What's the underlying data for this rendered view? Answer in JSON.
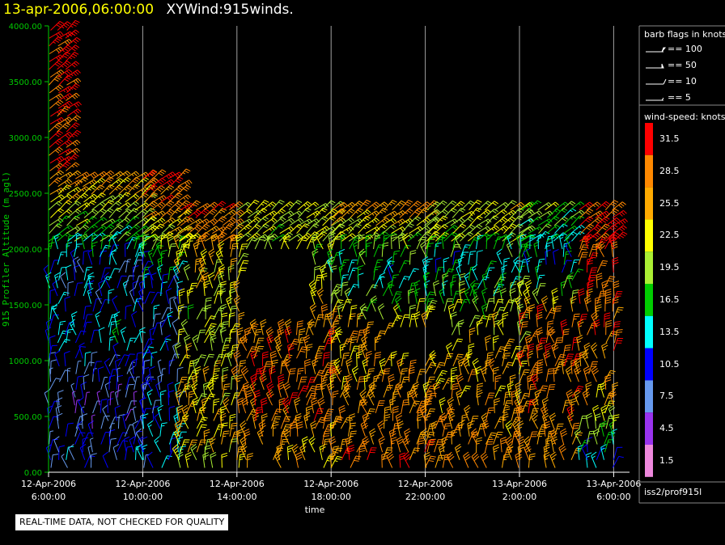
{
  "header": {
    "date": "13-apr-2006,06:00:00",
    "name": "XYWind:915winds."
  },
  "notice": "REAL-TIME DATA, NOT CHECKED FOR QUALITY",
  "source": "iss2/prof915l",
  "colors": {
    "axis_y": "#00cc00",
    "axis_x": "#ffffff",
    "grid": "#a0a0a0",
    "background": "#000000"
  },
  "flags_legend": {
    "title": "barb flags in knots",
    "items": [
      {
        "label": "== 100",
        "kind": "100"
      },
      {
        "label": "== 50",
        "kind": "50"
      },
      {
        "label": "== 10",
        "kind": "10"
      },
      {
        "label": "== 5",
        "kind": "5"
      }
    ]
  },
  "speed_legend": {
    "title": "wind-speed: knots",
    "items": [
      {
        "label": "31.5",
        "color": "#ff0000"
      },
      {
        "label": "28.5",
        "color": "#ff8800"
      },
      {
        "label": "25.5",
        "color": "#ffaa00"
      },
      {
        "label": "22.5",
        "color": "#ffff00"
      },
      {
        "label": "19.5",
        "color": "#aaee33"
      },
      {
        "label": "16.5",
        "color": "#00cc00"
      },
      {
        "label": "13.5",
        "color": "#00ffff"
      },
      {
        "label": "10.5",
        "color": "#0000ff"
      },
      {
        "label": "7.5",
        "color": "#6699ee"
      },
      {
        "label": "4.5",
        "color": "#9933ee"
      },
      {
        "label": "1.5",
        "color": "#ee88dd"
      }
    ]
  },
  "chart_data": {
    "type": "scatter",
    "subtype": "wind-barb time-height",
    "ylabel": "915 Profiler Altitude (m agl)",
    "xlabel": "time",
    "ylim": [
      0,
      4000
    ],
    "xlim_hours": [
      6,
      30.1
    ],
    "yticks": [
      "0.00",
      "500.00",
      "1000.00",
      "1500.00",
      "2000.00",
      "2500.00",
      "3000.00",
      "3500.00",
      "4000.00"
    ],
    "xticks": [
      {
        "hour": 6,
        "line1": "12-Apr-2006",
        "line2": "6:00:00"
      },
      {
        "hour": 10,
        "line1": "12-Apr-2006",
        "line2": "10:00:00"
      },
      {
        "hour": 14,
        "line1": "12-Apr-2006",
        "line2": "14:00:00"
      },
      {
        "hour": 18,
        "line1": "12-Apr-2006",
        "line2": "18:00:00"
      },
      {
        "hour": 22,
        "line1": "12-Apr-2006",
        "line2": "22:00:00"
      },
      {
        "hour": 26,
        "line1": "13-Apr-2006",
        "line2": "2:00:00"
      },
      {
        "hour": 30,
        "line1": "13-Apr-2006",
        "line2": "6:00:00"
      }
    ],
    "grid": "vertical lines at x ticks",
    "legend": "right",
    "time_step_hours": 0.36,
    "altitude_step_m": 70,
    "speed_bins_knots": [
      1.5,
      4.5,
      7.5,
      10.5,
      13.5,
      16.5,
      19.5,
      22.5,
      25.5,
      28.5,
      31.5
    ],
    "profiles": [
      {
        "from_hour": 6.0,
        "to_hour": 10.0,
        "top_m": 4000,
        "speed_knots_by_altitude": [
          [
            100,
            10
          ],
          [
            600,
            7
          ],
          [
            1200,
            13
          ],
          [
            1800,
            10
          ],
          [
            2000,
            16
          ],
          [
            2300,
            20
          ],
          [
            2500,
            24
          ],
          [
            2800,
            31
          ]
        ]
      },
      {
        "from_hour": 10.0,
        "to_hour": 11.5,
        "top_m": 3500,
        "speed_knots_by_altitude": [
          [
            100,
            13
          ],
          [
            800,
            10
          ],
          [
            1600,
            10
          ],
          [
            2000,
            20
          ],
          [
            2400,
            28
          ],
          [
            2800,
            32
          ]
        ]
      },
      {
        "from_hour": 11.5,
        "to_hour": 14.0,
        "top_m": 2650,
        "speed_knots_by_altitude": [
          [
            100,
            22
          ],
          [
            800,
            23
          ],
          [
            1400,
            20
          ],
          [
            2000,
            25
          ],
          [
            2400,
            31
          ]
        ]
      },
      {
        "from_hour": 14.0,
        "to_hour": 18.0,
        "top_m": 2350,
        "speed_knots_by_altitude": [
          [
            100,
            25
          ],
          [
            600,
            29
          ],
          [
            1200,
            28
          ],
          [
            1800,
            20
          ],
          [
            2200,
            21
          ]
        ]
      },
      {
        "from_hour": 18.0,
        "to_hour": 22.0,
        "top_m": 2450,
        "speed_knots_by_altitude": [
          [
            100,
            28
          ],
          [
            600,
            27
          ],
          [
            1200,
            25
          ],
          [
            1700,
            14
          ],
          [
            2100,
            20
          ],
          [
            2400,
            29
          ]
        ]
      },
      {
        "from_hour": 22.0,
        "to_hour": 26.0,
        "top_m": 2350,
        "speed_knots_by_altitude": [
          [
            100,
            27
          ],
          [
            700,
            26
          ],
          [
            1300,
            22
          ],
          [
            1800,
            13
          ],
          [
            2100,
            20
          ],
          [
            2300,
            22
          ]
        ]
      },
      {
        "from_hour": 26.0,
        "to_hour": 28.5,
        "top_m": 2500,
        "speed_knots_by_altitude": [
          [
            100,
            27
          ],
          [
            700,
            28
          ],
          [
            1300,
            30
          ],
          [
            1800,
            12
          ],
          [
            2100,
            16
          ],
          [
            2400,
            19
          ]
        ]
      },
      {
        "from_hour": 28.5,
        "to_hour": 30.1,
        "top_m": 2650,
        "speed_knots_by_altitude": [
          [
            100,
            12
          ],
          [
            600,
            26
          ],
          [
            1200,
            28
          ],
          [
            1700,
            30
          ],
          [
            2200,
            31
          ],
          [
            2600,
            27
          ]
        ]
      }
    ],
    "gaps": [
      {
        "from_hour": 7.0,
        "to_hour": 30.1,
        "from_m": 2700,
        "to_m": 4000
      },
      {
        "from_hour": 11.5,
        "to_hour": 30.1,
        "from_m": 2400,
        "to_m": 2700
      },
      {
        "from_hour": 14.3,
        "to_hour": 17.2,
        "from_m": 1300,
        "to_m": 2000
      },
      {
        "from_hour": 20.5,
        "to_hour": 23.0,
        "from_m": 1000,
        "to_m": 1300
      }
    ]
  }
}
